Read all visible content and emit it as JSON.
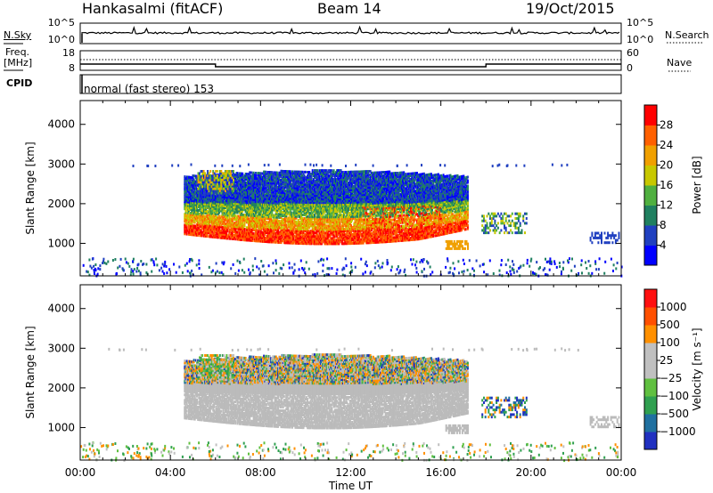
{
  "header": {
    "station": "Hankasalmi (fitACF)",
    "beam": "Beam 14",
    "date": "19/Oct/2015"
  },
  "top_panels": {
    "nsky_label": "N.Sky",
    "nsearch_label": "N.Search",
    "noise_ticks": [
      "10^5",
      "10^0"
    ],
    "freq_label_1": "Freq.",
    "freq_label_2": "[MHz]",
    "freq_ticks": [
      "18",
      "8"
    ],
    "nave_label": "Nave",
    "nave_ticks": [
      "60",
      "0"
    ],
    "cpid_label": "CPID",
    "cpid_text": "normal (fast stereo) 153"
  },
  "colors": {
    "power_scale": [
      "#0000ff",
      "#2040c0",
      "#208060",
      "#50b040",
      "#c8c800",
      "#f0a000",
      "#ff6000",
      "#ff0000"
    ],
    "velocity_scale": [
      "#2030c0",
      "#2070a0",
      "#30a050",
      "#60c040",
      "#c0c0c0",
      "#c0c0c0",
      "#ff9000",
      "#ff5000",
      "#ff1010"
    ],
    "ground_scatter": "#bbbbbb"
  },
  "chart_data": [
    {
      "type": "heatmap",
      "name": "power",
      "ylabel": "Slant Range [km]",
      "yticks": [
        1000,
        2000,
        3000,
        4000
      ],
      "ylim": [
        180,
        4600
      ],
      "xlim": [
        0,
        24
      ],
      "colorbar_label": "Power [dB]",
      "colorbar_ticks": [
        "4",
        "8",
        "12",
        "16",
        "20",
        "24",
        "28"
      ],
      "colorbar_range": [
        0,
        32
      ]
    },
    {
      "type": "heatmap",
      "name": "velocity",
      "xlabel": "Time UT",
      "xticks": [
        "00:00",
        "04:00",
        "08:00",
        "12:00",
        "16:00",
        "20:00",
        "00:00"
      ],
      "ylabel": "Slant Range [km]",
      "yticks": [
        1000,
        2000,
        3000,
        4000
      ],
      "ylim": [
        180,
        4600
      ],
      "xlim": [
        0,
        24
      ],
      "colorbar_label": "Velocity [m s⁻¹]",
      "colorbar_ticks": [
        "1000",
        "500",
        "100",
        "25",
        "−25",
        "−100",
        "−500",
        "−1000"
      ]
    }
  ]
}
